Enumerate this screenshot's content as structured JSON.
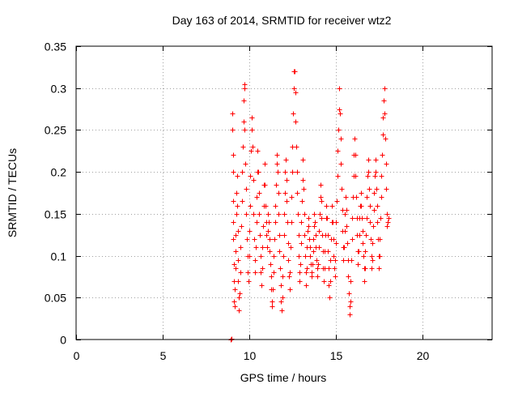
{
  "chart_data": {
    "type": "scatter",
    "title": "Day 163 of 2014, SRMTID for receiver wtz2",
    "xlabel": "GPS time / hours",
    "ylabel": "SRMTID / TECUs",
    "xlim": [
      0,
      24
    ],
    "ylim": [
      0,
      0.35
    ],
    "xticks": [
      0,
      5,
      10,
      15,
      20
    ],
    "xtick_labels": [
      "0",
      "5",
      "10",
      "15",
      "20"
    ],
    "yticks": [
      0,
      0.05,
      0.1,
      0.15,
      0.2,
      0.25,
      0.3,
      0.35
    ],
    "ytick_labels": [
      "0",
      "0.05",
      "0.1",
      "0.15",
      "0.2",
      "0.25",
      "0.3",
      "0.35"
    ],
    "grid": true,
    "series": [
      {
        "name": "SRMTID",
        "color": "#ff0000",
        "marker": "plus",
        "points": [
          [
            8.92,
            0.0
          ],
          [
            8.95,
            0.001
          ],
          [
            9.02,
            0.27
          ],
          [
            9.03,
            0.25
          ],
          [
            9.04,
            0.22
          ],
          [
            9.05,
            0.2
          ],
          [
            9.06,
            0.165
          ],
          [
            9.07,
            0.14
          ],
          [
            9.08,
            0.12
          ],
          [
            9.09,
            0.09
          ],
          [
            9.1,
            0.07
          ],
          [
            9.11,
            0.045
          ],
          [
            9.14,
            0.04
          ],
          [
            9.16,
            0.06
          ],
          [
            9.18,
            0.085
          ],
          [
            9.2,
            0.105
          ],
          [
            9.22,
            0.125
          ],
          [
            9.24,
            0.15
          ],
          [
            9.26,
            0.175
          ],
          [
            9.28,
            0.195
          ],
          [
            9.3,
            0.16
          ],
          [
            9.32,
            0.13
          ],
          [
            9.34,
            0.095
          ],
          [
            9.36,
            0.07
          ],
          [
            9.38,
            0.05
          ],
          [
            9.4,
            0.035
          ],
          [
            9.44,
            0.055
          ],
          [
            9.47,
            0.08
          ],
          [
            9.5,
            0.11
          ],
          [
            9.53,
            0.135
          ],
          [
            9.56,
            0.165
          ],
          [
            9.59,
            0.2
          ],
          [
            9.62,
            0.23
          ],
          [
            9.65,
            0.26
          ],
          [
            9.67,
            0.285
          ],
          [
            9.69,
            0.3
          ],
          [
            9.7,
            0.305
          ],
          [
            9.73,
            0.25
          ],
          [
            9.76,
            0.21
          ],
          [
            9.79,
            0.18
          ],
          [
            9.82,
            0.15
          ],
          [
            9.85,
            0.12
          ],
          [
            9.88,
            0.1
          ],
          [
            9.91,
            0.08
          ],
          [
            9.94,
            0.07
          ],
          [
            9.97,
            0.1
          ],
          [
            10.0,
            0.13
          ],
          [
            10.03,
            0.16
          ],
          [
            10.06,
            0.195
          ],
          [
            10.09,
            0.225
          ],
          [
            10.12,
            0.25
          ],
          [
            10.15,
            0.265
          ],
          [
            10.18,
            0.23
          ],
          [
            10.21,
            0.19
          ],
          [
            10.24,
            0.15
          ],
          [
            10.27,
            0.12
          ],
          [
            10.3,
            0.095
          ],
          [
            10.33,
            0.08
          ],
          [
            10.36,
            0.11
          ],
          [
            10.39,
            0.14
          ],
          [
            10.42,
            0.17
          ],
          [
            10.45,
            0.2
          ],
          [
            10.48,
            0.225
          ],
          [
            10.51,
            0.2
          ],
          [
            10.54,
            0.175
          ],
          [
            10.57,
            0.15
          ],
          [
            10.6,
            0.125
          ],
          [
            10.63,
            0.1
          ],
          [
            10.66,
            0.08
          ],
          [
            10.69,
            0.065
          ],
          [
            10.72,
            0.085
          ],
          [
            10.75,
            0.11
          ],
          [
            10.78,
            0.135
          ],
          [
            10.81,
            0.16
          ],
          [
            10.84,
            0.185
          ],
          [
            10.87,
            0.21
          ],
          [
            10.9,
            0.185
          ],
          [
            10.93,
            0.16
          ],
          [
            10.96,
            0.14
          ],
          [
            10.99,
            0.125
          ],
          [
            11.02,
            0.11
          ],
          [
            11.05,
            0.13
          ],
          [
            11.08,
            0.15
          ],
          [
            11.11,
            0.14
          ],
          [
            11.14,
            0.12
          ],
          [
            11.17,
            0.105
          ],
          [
            11.2,
            0.09
          ],
          [
            11.23,
            0.075
          ],
          [
            11.26,
            0.06
          ],
          [
            11.29,
            0.045
          ],
          [
            11.32,
            0.04
          ],
          [
            11.35,
            0.06
          ],
          [
            11.38,
            0.08
          ],
          [
            11.41,
            0.1
          ],
          [
            11.44,
            0.12
          ],
          [
            11.47,
            0.14
          ],
          [
            11.5,
            0.16
          ],
          [
            11.53,
            0.185
          ],
          [
            11.56,
            0.21
          ],
          [
            11.59,
            0.22
          ],
          [
            11.62,
            0.2
          ],
          [
            11.65,
            0.175
          ],
          [
            11.68,
            0.15
          ],
          [
            11.71,
            0.125
          ],
          [
            11.74,
            0.105
          ],
          [
            11.77,
            0.085
          ],
          [
            11.8,
            0.065
          ],
          [
            11.83,
            0.045
          ],
          [
            11.86,
            0.035
          ],
          [
            11.89,
            0.05
          ],
          [
            11.92,
            0.075
          ],
          [
            11.95,
            0.1
          ],
          [
            11.98,
            0.125
          ],
          [
            12.01,
            0.15
          ],
          [
            12.04,
            0.175
          ],
          [
            12.07,
            0.2
          ],
          [
            12.1,
            0.215
          ],
          [
            12.13,
            0.19
          ],
          [
            12.16,
            0.165
          ],
          [
            12.19,
            0.14
          ],
          [
            12.22,
            0.115
          ],
          [
            12.25,
            0.095
          ],
          [
            12.28,
            0.075
          ],
          [
            12.31,
            0.06
          ],
          [
            12.34,
            0.08
          ],
          [
            12.37,
            0.11
          ],
          [
            12.4,
            0.14
          ],
          [
            12.43,
            0.17
          ],
          [
            12.46,
            0.2
          ],
          [
            12.49,
            0.23
          ],
          [
            12.52,
            0.27
          ],
          [
            12.55,
            0.3
          ],
          [
            12.58,
            0.32
          ],
          [
            12.61,
            0.32
          ],
          [
            12.64,
            0.295
          ],
          [
            12.67,
            0.26
          ],
          [
            12.7,
            0.23
          ],
          [
            12.73,
            0.2
          ],
          [
            12.76,
            0.175
          ],
          [
            12.79,
            0.15
          ],
          [
            12.82,
            0.125
          ],
          [
            12.85,
            0.1
          ],
          [
            12.88,
            0.08
          ],
          [
            12.91,
            0.07
          ],
          [
            12.94,
            0.09
          ],
          [
            12.97,
            0.115
          ],
          [
            13.0,
            0.14
          ],
          [
            13.03,
            0.165
          ],
          [
            13.06,
            0.19
          ],
          [
            13.09,
            0.215
          ],
          [
            13.12,
            0.18
          ],
          [
            13.15,
            0.15
          ],
          [
            13.18,
            0.125
          ],
          [
            13.21,
            0.1
          ],
          [
            13.24,
            0.08
          ],
          [
            13.27,
            0.065
          ],
          [
            13.3,
            0.085
          ],
          [
            13.33,
            0.11
          ],
          [
            13.36,
            0.13
          ],
          [
            13.39,
            0.145
          ],
          [
            13.42,
            0.135
          ],
          [
            13.45,
            0.12
          ],
          [
            13.48,
            0.11
          ],
          [
            13.51,
            0.1
          ],
          [
            13.54,
            0.09
          ],
          [
            13.57,
            0.08
          ],
          [
            13.6,
            0.075
          ],
          [
            13.63,
            0.09
          ],
          [
            13.66,
            0.105
          ],
          [
            13.69,
            0.12
          ],
          [
            13.72,
            0.135
          ],
          [
            13.75,
            0.15
          ],
          [
            13.78,
            0.14
          ],
          [
            13.81,
            0.125
          ],
          [
            13.84,
            0.11
          ],
          [
            13.87,
            0.095
          ],
          [
            13.9,
            0.085
          ],
          [
            13.93,
            0.075
          ],
          [
            13.96,
            0.09
          ],
          [
            13.99,
            0.11
          ],
          [
            14.02,
            0.13
          ],
          [
            14.05,
            0.15
          ],
          [
            14.08,
            0.17
          ],
          [
            14.11,
            0.185
          ],
          [
            14.14,
            0.165
          ],
          [
            14.17,
            0.145
          ],
          [
            14.2,
            0.125
          ],
          [
            14.23,
            0.105
          ],
          [
            14.26,
            0.085
          ],
          [
            14.29,
            0.07
          ],
          [
            14.32,
            0.085
          ],
          [
            14.35,
            0.105
          ],
          [
            14.38,
            0.125
          ],
          [
            14.41,
            0.145
          ],
          [
            14.44,
            0.16
          ],
          [
            14.47,
            0.145
          ],
          [
            14.5,
            0.125
          ],
          [
            14.53,
            0.105
          ],
          [
            14.56,
            0.085
          ],
          [
            14.59,
            0.065
          ],
          [
            14.62,
            0.05
          ],
          [
            14.65,
            0.07
          ],
          [
            14.68,
            0.095
          ],
          [
            14.71,
            0.12
          ],
          [
            14.74,
            0.14
          ],
          [
            14.77,
            0.16
          ],
          [
            14.8,
            0.14
          ],
          [
            14.83,
            0.12
          ],
          [
            14.86,
            0.1
          ],
          [
            14.89,
            0.085
          ],
          [
            14.92,
            0.075
          ],
          [
            14.95,
            0.095
          ],
          [
            14.98,
            0.115
          ],
          [
            15.01,
            0.14
          ],
          [
            15.04,
            0.165
          ],
          [
            15.07,
            0.195
          ],
          [
            15.1,
            0.225
          ],
          [
            15.13,
            0.25
          ],
          [
            15.16,
            0.275
          ],
          [
            15.19,
            0.3
          ],
          [
            15.22,
            0.27
          ],
          [
            15.25,
            0.24
          ],
          [
            15.28,
            0.21
          ],
          [
            15.31,
            0.18
          ],
          [
            15.34,
            0.155
          ],
          [
            15.37,
            0.13
          ],
          [
            15.4,
            0.11
          ],
          [
            15.43,
            0.095
          ],
          [
            15.46,
            0.11
          ],
          [
            15.49,
            0.13
          ],
          [
            15.52,
            0.15
          ],
          [
            15.55,
            0.17
          ],
          [
            15.58,
            0.155
          ],
          [
            15.61,
            0.135
          ],
          [
            15.64,
            0.115
          ],
          [
            15.67,
            0.095
          ],
          [
            15.7,
            0.075
          ],
          [
            15.73,
            0.055
          ],
          [
            15.76,
            0.04
          ],
          [
            15.79,
            0.03
          ],
          [
            15.82,
            0.045
          ],
          [
            15.85,
            0.07
          ],
          [
            15.88,
            0.095
          ],
          [
            15.91,
            0.12
          ],
          [
            15.94,
            0.145
          ],
          [
            15.97,
            0.17
          ],
          [
            16.0,
            0.195
          ],
          [
            16.03,
            0.22
          ],
          [
            16.06,
            0.24
          ],
          [
            16.09,
            0.22
          ],
          [
            16.12,
            0.195
          ],
          [
            16.15,
            0.17
          ],
          [
            16.18,
            0.145
          ],
          [
            16.21,
            0.125
          ],
          [
            16.24,
            0.105
          ],
          [
            16.27,
            0.09
          ],
          [
            16.3,
            0.105
          ],
          [
            16.33,
            0.125
          ],
          [
            16.36,
            0.145
          ],
          [
            16.39,
            0.16
          ],
          [
            16.42,
            0.175
          ],
          [
            16.45,
            0.16
          ],
          [
            16.48,
            0.145
          ],
          [
            16.51,
            0.13
          ],
          [
            16.54,
            0.115
          ],
          [
            16.57,
            0.1
          ],
          [
            16.6,
            0.085
          ],
          [
            16.63,
            0.07
          ],
          [
            16.66,
            0.085
          ],
          [
            16.69,
            0.105
          ],
          [
            16.72,
            0.125
          ],
          [
            16.75,
            0.145
          ],
          [
            16.78,
            0.17
          ],
          [
            16.81,
            0.195
          ],
          [
            16.84,
            0.215
          ],
          [
            16.87,
            0.2
          ],
          [
            16.9,
            0.18
          ],
          [
            16.93,
            0.16
          ],
          [
            16.96,
            0.14
          ],
          [
            16.99,
            0.12
          ],
          [
            17.02,
            0.1
          ],
          [
            17.05,
            0.085
          ],
          [
            17.08,
            0.095
          ],
          [
            17.11,
            0.115
          ],
          [
            17.14,
            0.135
          ],
          [
            17.17,
            0.155
          ],
          [
            17.2,
            0.175
          ],
          [
            17.23,
            0.195
          ],
          [
            17.26,
            0.215
          ],
          [
            17.29,
            0.2
          ],
          [
            17.32,
            0.18
          ],
          [
            17.35,
            0.16
          ],
          [
            17.38,
            0.14
          ],
          [
            17.41,
            0.12
          ],
          [
            17.44,
            0.1
          ],
          [
            17.47,
            0.085
          ],
          [
            17.5,
            0.1
          ],
          [
            17.53,
            0.12
          ],
          [
            17.56,
            0.145
          ],
          [
            17.59,
            0.17
          ],
          [
            17.62,
            0.195
          ],
          [
            17.65,
            0.22
          ],
          [
            17.68,
            0.245
          ],
          [
            17.71,
            0.265
          ],
          [
            17.74,
            0.285
          ],
          [
            17.77,
            0.3
          ],
          [
            17.8,
            0.27
          ],
          [
            17.83,
            0.24
          ],
          [
            17.86,
            0.21
          ],
          [
            17.89,
            0.18
          ],
          [
            17.92,
            0.15
          ],
          [
            17.95,
            0.135
          ],
          [
            17.98,
            0.14
          ],
          [
            18.0,
            0.145
          ]
        ]
      }
    ]
  }
}
